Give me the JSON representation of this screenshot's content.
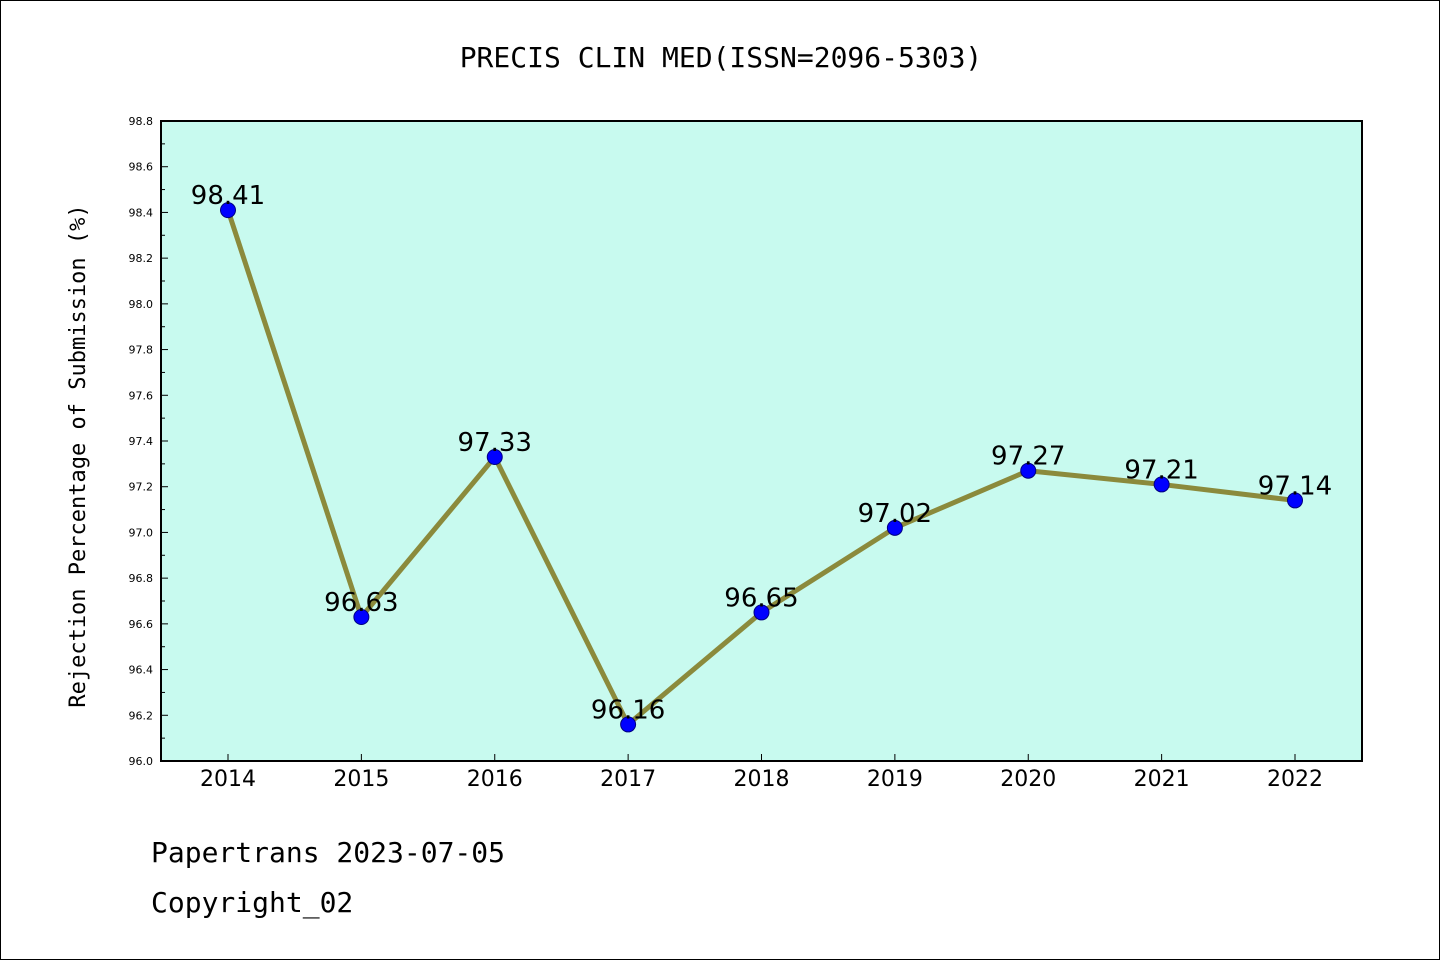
{
  "chart_data": {
    "type": "line",
    "title": "PRECIS CLIN MED(ISSN=2096-5303)",
    "xlabel": "",
    "ylabel": "Rejection Percentage of Submission (%)",
    "categories": [
      "2014",
      "2015",
      "2016",
      "2017",
      "2018",
      "2019",
      "2020",
      "2021",
      "2022"
    ],
    "values": [
      98.41,
      96.63,
      97.33,
      96.16,
      96.65,
      97.02,
      97.27,
      97.21,
      97.14
    ],
    "data_labels": [
      "98.41",
      "96.63",
      "97.33",
      "96.16",
      "96.65",
      "97.02",
      "97.27",
      "97.21",
      "97.14"
    ],
    "ylim": [
      96.0,
      98.8
    ],
    "yticks": [
      "96.0",
      "96.2",
      "96.4",
      "96.6",
      "96.8",
      "97.0",
      "97.2",
      "97.4",
      "97.6",
      "97.8",
      "98.0",
      "98.2",
      "98.4",
      "98.6",
      "98.8"
    ],
    "grid": false,
    "legend": "none",
    "colors": {
      "plot_background": "#c8faef",
      "line": "#8b8a3c",
      "marker": "#0000ff"
    }
  },
  "footer": {
    "line1": "Papertrans 2023-07-05",
    "line2": "Copyright_02"
  }
}
